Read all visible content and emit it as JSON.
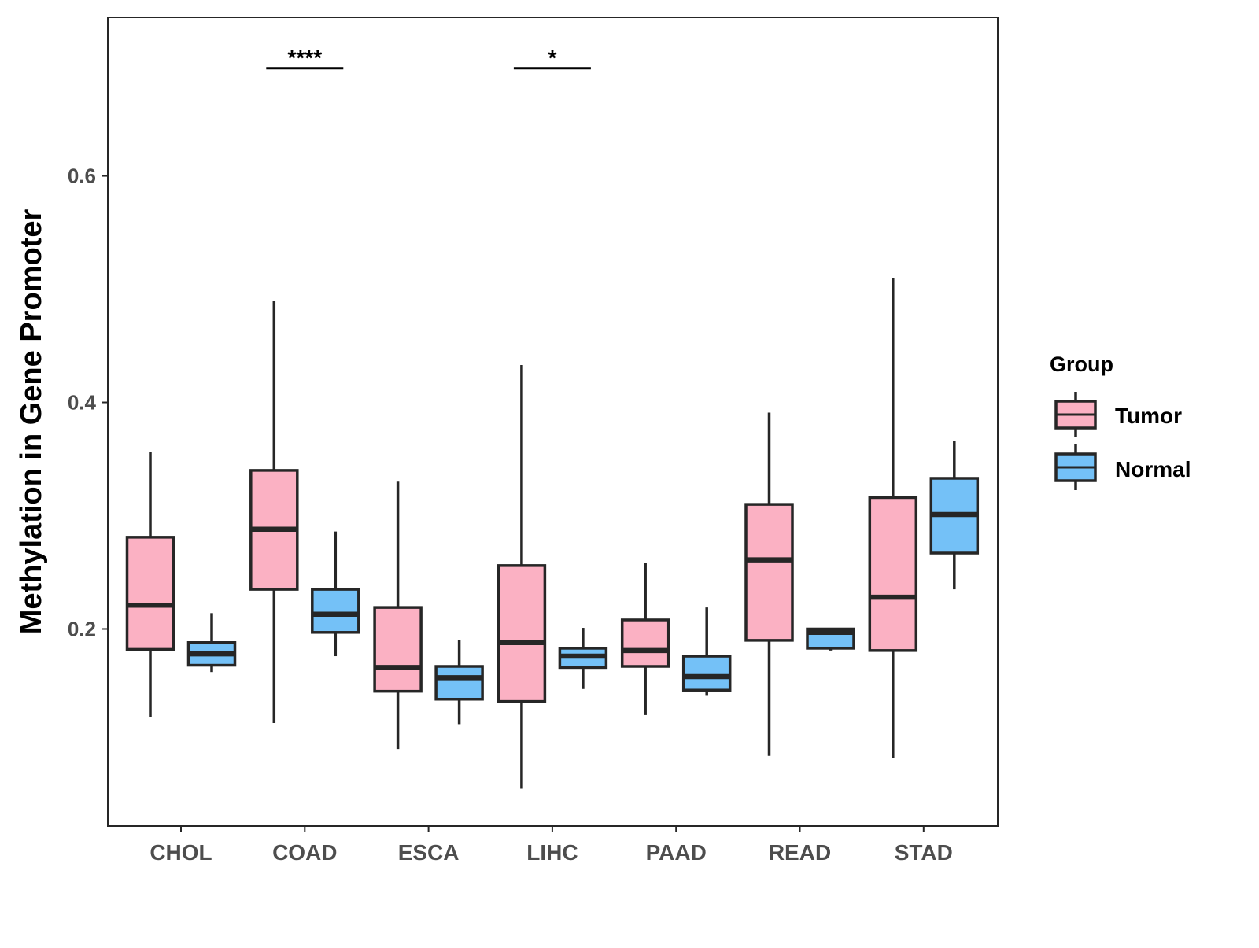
{
  "chart_data": {
    "type": "boxplot",
    "title": "",
    "xlabel": "",
    "ylabel": "Methylation in Gene Promoter",
    "ylim": [
      0.026,
      0.74
    ],
    "yticks": [
      0.2,
      0.4,
      0.6
    ],
    "ytick_labels": [
      "0.2",
      "0.4",
      "0.6"
    ],
    "grid": false,
    "categories": [
      "CHOL",
      "COAD",
      "ESCA",
      "LIHC",
      "PAAD",
      "READ",
      "STAD"
    ],
    "legend": {
      "title": "Group",
      "placement": "right",
      "entries": [
        "Tumor",
        "Normal"
      ]
    },
    "colors": {
      "Tumor": "#FBB1C3",
      "Normal": "#74C1F7",
      "outline": "#262626"
    },
    "series": [
      {
        "name": "Tumor",
        "boxes": [
          {
            "min": 0.122,
            "q1": 0.182,
            "median": 0.221,
            "q3": 0.281,
            "max": 0.356
          },
          {
            "min": 0.117,
            "q1": 0.235,
            "median": 0.288,
            "q3": 0.34,
            "max": 0.49
          },
          {
            "min": 0.094,
            "q1": 0.145,
            "median": 0.166,
            "q3": 0.219,
            "max": 0.33
          },
          {
            "min": 0.059,
            "q1": 0.136,
            "median": 0.188,
            "q3": 0.256,
            "max": 0.433
          },
          {
            "min": 0.124,
            "q1": 0.167,
            "median": 0.181,
            "q3": 0.208,
            "max": 0.258
          },
          {
            "min": 0.088,
            "q1": 0.19,
            "median": 0.261,
            "q3": 0.31,
            "max": 0.391
          },
          {
            "min": 0.086,
            "q1": 0.181,
            "median": 0.228,
            "q3": 0.316,
            "max": 0.51
          }
        ]
      },
      {
        "name": "Normal",
        "boxes": [
          {
            "min": 0.162,
            "q1": 0.168,
            "median": 0.178,
            "q3": 0.188,
            "max": 0.214
          },
          {
            "min": 0.176,
            "q1": 0.197,
            "median": 0.213,
            "q3": 0.235,
            "max": 0.286
          },
          {
            "min": 0.116,
            "q1": 0.138,
            "median": 0.157,
            "q3": 0.167,
            "max": 0.19
          },
          {
            "min": 0.147,
            "q1": 0.166,
            "median": 0.176,
            "q3": 0.183,
            "max": 0.201
          },
          {
            "min": 0.141,
            "q1": 0.146,
            "median": 0.158,
            "q3": 0.176,
            "max": 0.219
          },
          {
            "min": 0.181,
            "q1": 0.183,
            "median": 0.197,
            "q3": 0.2,
            "max": 0.201
          },
          {
            "min": 0.235,
            "q1": 0.267,
            "median": 0.301,
            "q3": 0.333,
            "max": 0.366
          }
        ]
      }
    ],
    "annotations": [
      {
        "category": "COAD",
        "label": "****",
        "y": 0.695
      },
      {
        "category": "LIHC",
        "label": "*",
        "y": 0.695
      }
    ]
  }
}
